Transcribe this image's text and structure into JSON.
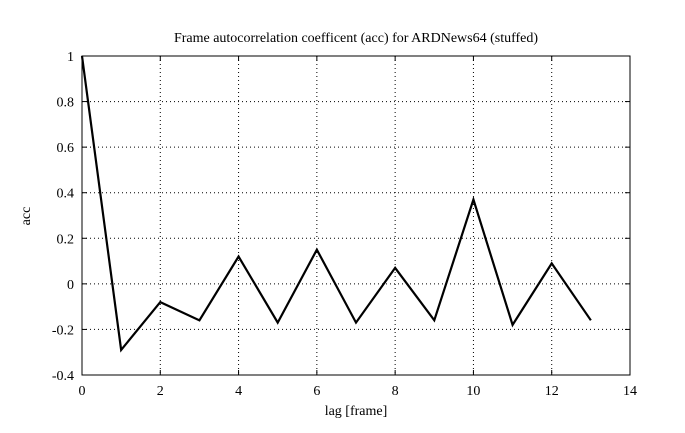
{
  "chart_data": {
    "type": "line",
    "title": "Frame autocorrelation coefficent (acc) for ARDNews64 (stuffed)",
    "x_label": "lag [frame]",
    "y_label": "acc",
    "x": [
      0,
      1,
      2,
      3,
      4,
      5,
      6,
      7,
      8,
      9,
      10,
      11,
      12,
      13
    ],
    "series": [
      {
        "color": "#000000",
        "values": [
          1,
          -0.29,
          -0.08,
          -0.16,
          0.12,
          -0.17,
          0.15,
          -0.17,
          0.07,
          -0.16,
          0.37,
          -0.18,
          0.09,
          -0.16
        ]
      }
    ],
    "xlim": [
      0,
      14
    ],
    "xticks": [
      0,
      2,
      4,
      6,
      8,
      10,
      12,
      14
    ],
    "ylim": [
      -0.4,
      1
    ],
    "yticks": [
      -0.4,
      -0.2,
      0,
      0.2,
      0.4,
      0.6,
      0.8,
      1
    ],
    "grid": true
  }
}
